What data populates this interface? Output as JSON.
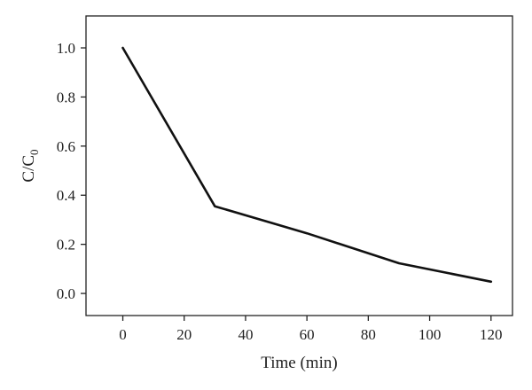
{
  "chart_data": {
    "type": "line",
    "title": "",
    "xlabel": "Time (min)",
    "ylabel": {
      "main": "C/C",
      "subscript": "0"
    },
    "xlim": [
      -12,
      127
    ],
    "ylim": [
      -0.09,
      1.13
    ],
    "xticks": [
      0,
      20,
      40,
      60,
      80,
      100,
      120
    ],
    "yticks": [
      0.0,
      0.2,
      0.4,
      0.6,
      0.8,
      1.0
    ],
    "xtick_labels": [
      "0",
      "20",
      "40",
      "60",
      "80",
      "100",
      "120"
    ],
    "ytick_labels": [
      "0.0",
      "0.2",
      "0.4",
      "0.6",
      "0.8",
      "1.0"
    ],
    "grid": false,
    "legend": "none",
    "series": [
      {
        "color": "#111111",
        "x": [
          0,
          30,
          60,
          90,
          120
        ],
        "y": [
          1.0,
          0.355,
          0.245,
          0.123,
          0.048
        ]
      }
    ]
  }
}
